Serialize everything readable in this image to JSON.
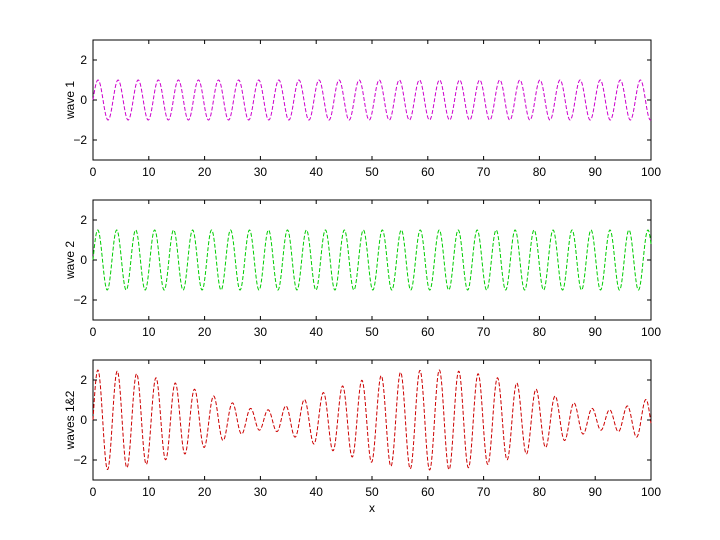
{
  "chart_data": [
    {
      "type": "line",
      "ylabel": "wave 1",
      "xlabel": "",
      "xlim": [
        0,
        100
      ],
      "ylim": [
        -3,
        3
      ],
      "xticks": [
        0,
        10,
        20,
        30,
        40,
        50,
        60,
        70,
        80,
        90,
        100
      ],
      "yticks": [
        -2,
        0,
        2
      ],
      "series": [
        {
          "color": "#cc00cc",
          "line_style": "dashed",
          "function": "sin",
          "amplitude": 1.0,
          "period": 3.6,
          "phase": 0
        }
      ]
    },
    {
      "type": "line",
      "ylabel": "wave 2",
      "xlabel": "",
      "xlim": [
        0,
        100
      ],
      "ylim": [
        -3,
        3
      ],
      "xticks": [
        0,
        10,
        20,
        30,
        40,
        50,
        60,
        70,
        80,
        90,
        100
      ],
      "yticks": [
        -2,
        0,
        2
      ],
      "series": [
        {
          "color": "#00cc00",
          "line_style": "dashed",
          "function": "sin",
          "amplitude": 1.5,
          "period": 3.4,
          "phase": 0
        }
      ]
    },
    {
      "type": "line",
      "ylabel": "waves 1&2",
      "xlabel": "x",
      "xlim": [
        0,
        100
      ],
      "ylim": [
        -3,
        3
      ],
      "xticks": [
        0,
        10,
        20,
        30,
        40,
        50,
        60,
        70,
        80,
        90,
        100
      ],
      "yticks": [
        -2,
        0,
        2
      ],
      "series": [
        {
          "color": "#cc0000",
          "line_style": "dashed",
          "function": "sum of wave 1 and wave 2"
        }
      ]
    }
  ]
}
